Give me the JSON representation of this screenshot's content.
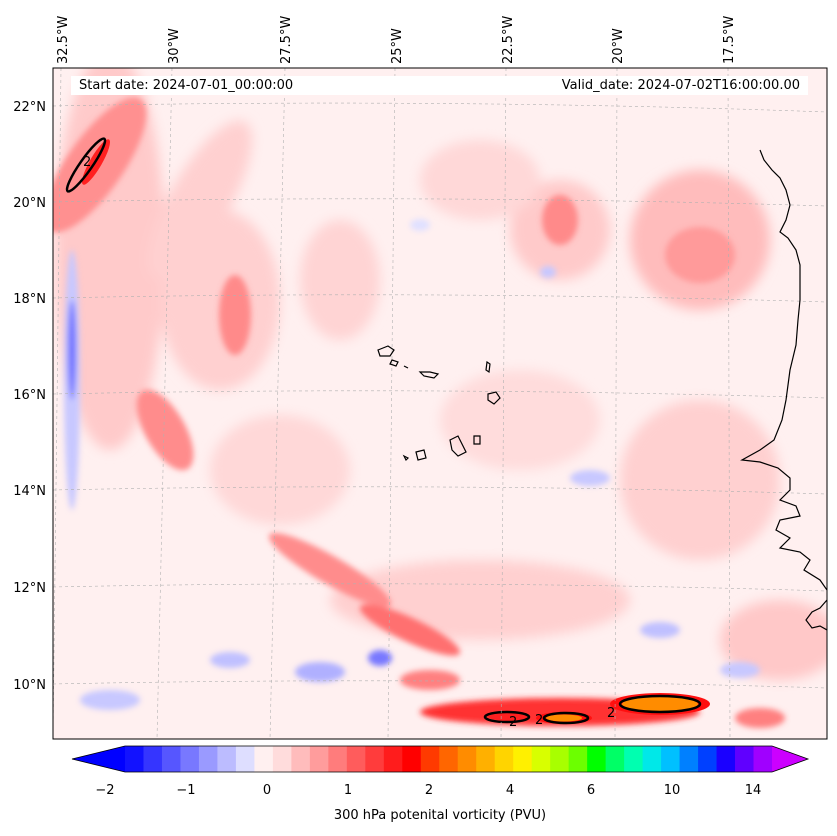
{
  "map": {
    "start_date": "Start date: 2024-07-01_00:00:00",
    "valid_date": "Valid_date: 2024-07-02T16:00:00.00",
    "lon_labels": [
      "32.5°W",
      "30°W",
      "27.5°W",
      "25°W",
      "22.5°W",
      "20°W",
      "17.5°W"
    ],
    "lat_labels": [
      "22°N",
      "20°N",
      "18°N",
      "16°N",
      "14°N",
      "12°N",
      "10°N"
    ],
    "contour_label": "2"
  },
  "colorbar": {
    "label": "300 hPa potenital vorticity (PVU)",
    "tick_labels": [
      "−2",
      "−1",
      "0",
      "1",
      "2",
      "4",
      "6",
      "10",
      "14"
    ],
    "colors": [
      "#1212ff",
      "#3535ff",
      "#5656ff",
      "#7878ff",
      "#9a9aff",
      "#bcbcff",
      "#dedeff",
      "#fff0f0",
      "#ffdcdc",
      "#ffbcbc",
      "#ff9c9c",
      "#ff7c7c",
      "#ff5c5c",
      "#ff3c3c",
      "#ff1c1c",
      "#ff0000",
      "#ff3a00",
      "#ff6600",
      "#ff8c00",
      "#ffb000",
      "#ffd400",
      "#fff000",
      "#d8ff00",
      "#a8ff00",
      "#6cff00",
      "#00ff00",
      "#00ff66",
      "#00ffb0",
      "#00e8e8",
      "#00c0ff",
      "#0080ff",
      "#0040ff",
      "#1a00ff",
      "#6000ff",
      "#a000ff"
    ],
    "under_color": "#0000ff",
    "over_color": "#cc00ff"
  },
  "colors": {
    "background_field": "#fff0f0",
    "coast": "#000000"
  }
}
